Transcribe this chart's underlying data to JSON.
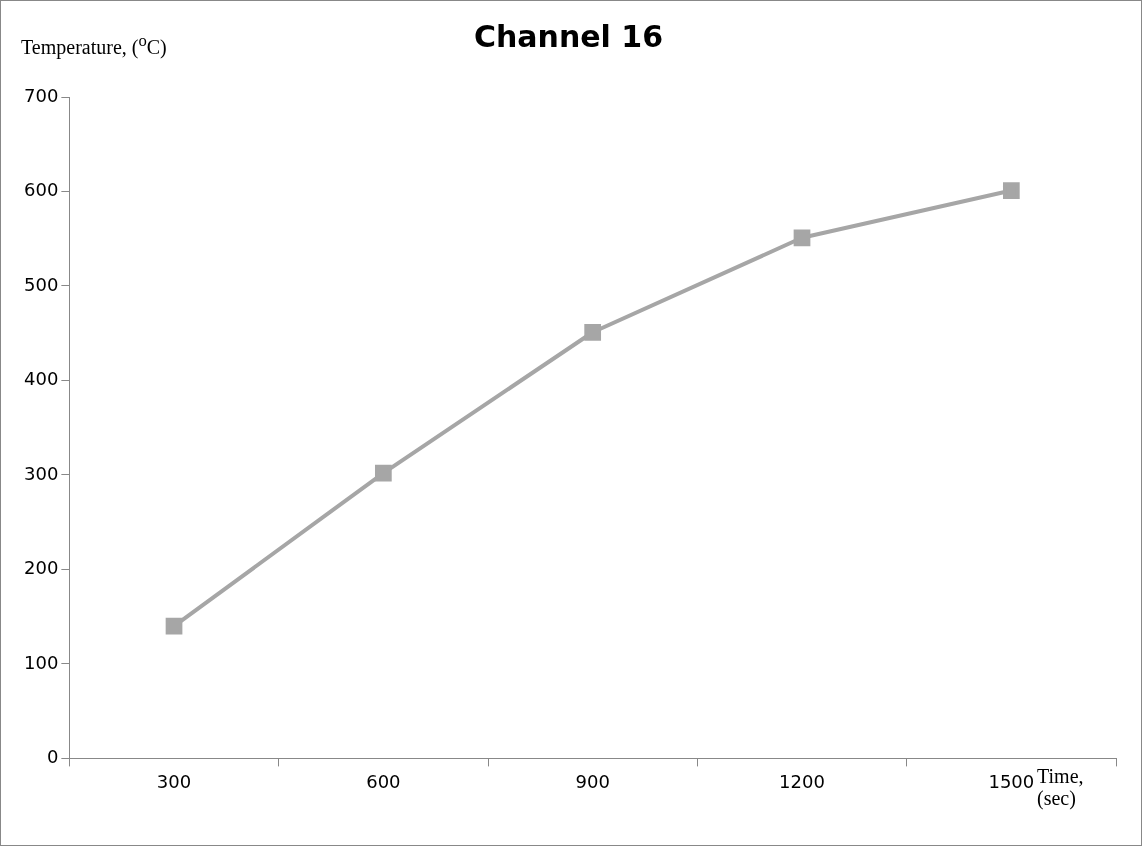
{
  "chart_data": {
    "type": "line",
    "title": "Channel 16",
    "ylabel": "Temperature, ($^{o}$C)",
    "xlabel": "Time, (sec)",
    "categories": [
      "300",
      "600",
      "900",
      "1200",
      "1500"
    ],
    "series": [
      {
        "color": "#a6a6a6",
        "values": [
          140,
          302,
          451,
          551,
          601
        ]
      }
    ],
    "ylim": [
      0,
      700
    ],
    "yticks": [
      0,
      100,
      200,
      300,
      400,
      500,
      600,
      700
    ],
    "grid": false,
    "marker": "square"
  }
}
